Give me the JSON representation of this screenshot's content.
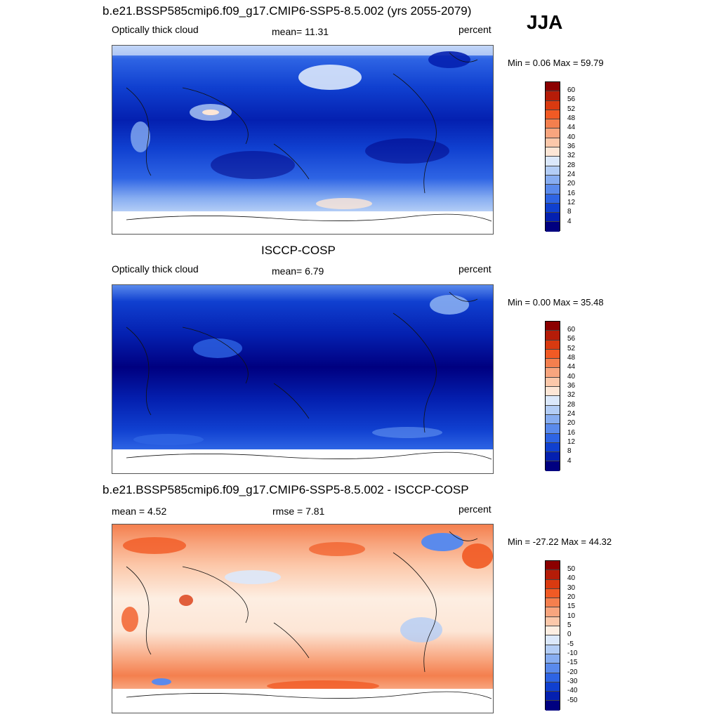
{
  "season": "JJA",
  "chart_data": [
    {
      "type": "heatmap",
      "title": "b.e21.BSSP585cmip6.f09_g17.CMIP6-SSP5-8.5.002 (yrs 2055-2079)",
      "left_label": "Optically thick cloud",
      "stat_label": "mean=  11.31",
      "mean": 11.31,
      "units": "percent",
      "min": 0.06,
      "max": 59.79,
      "minmax_label": "Min =    0.06 Max =  59.79",
      "colorbar_levels": [
        "60",
        "56",
        "52",
        "48",
        "44",
        "40",
        "36",
        "32",
        "28",
        "24",
        "20",
        "16",
        "12",
        "8",
        "4"
      ]
    },
    {
      "type": "heatmap",
      "title": "ISCCP-COSP",
      "left_label": "Optically thick cloud",
      "stat_label": "mean=   6.79",
      "mean": 6.79,
      "units": "percent",
      "min": 0.0,
      "max": 35.48,
      "minmax_label": "Min =    0.00 Max =  35.48",
      "colorbar_levels": [
        "60",
        "56",
        "52",
        "48",
        "44",
        "40",
        "36",
        "32",
        "28",
        "24",
        "20",
        "16",
        "12",
        "8",
        "4"
      ]
    },
    {
      "type": "heatmap",
      "title": "b.e21.BSSP585cmip6.f09_g17.CMIP6-SSP5-8.5.002 - ISCCP-COSP",
      "left_label": "mean =    4.52",
      "stat_label": "rmse =    7.81",
      "mean": 4.52,
      "rmse": 7.81,
      "units": "percent",
      "min": -27.22,
      "max": 44.32,
      "minmax_label": "Min = -27.22 Max =  44.32",
      "colorbar_levels": [
        "50",
        "40",
        "30",
        "20",
        "15",
        "10",
        "5",
        "0",
        "-5",
        "-10",
        "-15",
        "-20",
        "-30",
        "-40",
        "-50"
      ]
    }
  ],
  "colors": {
    "abs_scale": [
      "#8b0000",
      "#b51c08",
      "#d93a10",
      "#f15a24",
      "#f47f4e",
      "#f8a57e",
      "#fcc8aa",
      "#fde6d6",
      "#dbe8fb",
      "#b3cdf6",
      "#87adf1",
      "#5a8aec",
      "#2e64e4",
      "#1040d0",
      "#0420b0",
      "#000080"
    ],
    "diff_scale": [
      "#8b0000",
      "#b51c08",
      "#d93a10",
      "#f15a24",
      "#f47f4e",
      "#f8a57e",
      "#fcc8aa",
      "#fdeee2",
      "#dbe8fb",
      "#b3cdf6",
      "#87adf1",
      "#5a8aec",
      "#2e64e4",
      "#1040d0",
      "#0420b0",
      "#000080"
    ]
  }
}
